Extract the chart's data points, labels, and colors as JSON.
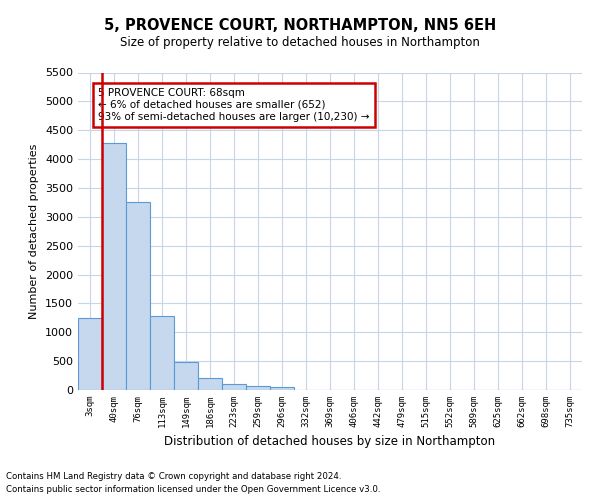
{
  "title": "5, PROVENCE COURT, NORTHAMPTON, NN5 6EH",
  "subtitle": "Size of property relative to detached houses in Northampton",
  "xlabel": "Distribution of detached houses by size in Northampton",
  "ylabel": "Number of detached properties",
  "footnote1": "Contains HM Land Registry data © Crown copyright and database right 2024.",
  "footnote2": "Contains public sector information licensed under the Open Government Licence v3.0.",
  "annotation_title": "5 PROVENCE COURT: 68sqm",
  "annotation_line1": "← 6% of detached houses are smaller (652)",
  "annotation_line2": "93% of semi-detached houses are larger (10,230) →",
  "bar_color": "#c5d8ee",
  "bar_edge_color": "#5b9bd5",
  "ref_line_color": "#cc0000",
  "annotation_box_color": "#cc0000",
  "background_color": "#ffffff",
  "grid_color": "#c8d4e8",
  "categories": [
    "3sqm",
    "40sqm",
    "76sqm",
    "113sqm",
    "149sqm",
    "186sqm",
    "223sqm",
    "259sqm",
    "296sqm",
    "332sqm",
    "369sqm",
    "406sqm",
    "442sqm",
    "479sqm",
    "515sqm",
    "552sqm",
    "589sqm",
    "625sqm",
    "662sqm",
    "698sqm",
    "735sqm"
  ],
  "values": [
    1250,
    4280,
    3250,
    1280,
    490,
    200,
    100,
    70,
    50,
    0,
    0,
    0,
    0,
    0,
    0,
    0,
    0,
    0,
    0,
    0,
    0
  ],
  "ylim": [
    0,
    5500
  ],
  "yticks": [
    0,
    500,
    1000,
    1500,
    2000,
    2500,
    3000,
    3500,
    4000,
    4500,
    5000,
    5500
  ],
  "ref_line_x": 1.0,
  "bar_width": 1.0
}
